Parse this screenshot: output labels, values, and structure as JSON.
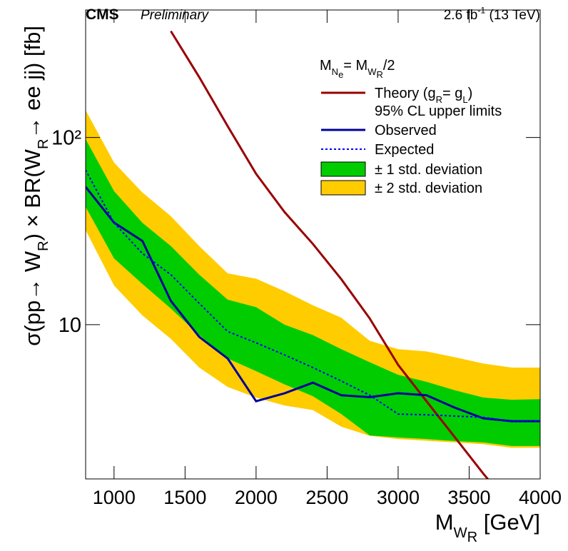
{
  "chart_data": {
    "type": "line",
    "experiment": "CMS",
    "status": "Preliminary",
    "lumi": [
      {
        "text": "2.6 fb"
      },
      {
        "text": "-1",
        "sup": true
      },
      {
        "text": " (13 TeV)"
      }
    ],
    "x_label": [
      {
        "text": "M"
      },
      {
        "text": "W",
        "sub": true
      },
      {
        "text": "R",
        "subsub": true
      },
      {
        "text": " [GeV]"
      }
    ],
    "y_label": [
      {
        "text": "σ(pp→ W"
      },
      {
        "text": "R",
        "sub": true
      },
      {
        "text": ") × BR(W"
      },
      {
        "text": "R",
        "sub": true
      },
      {
        "text": "→ ee jj) [fb]"
      }
    ],
    "legend_title": [
      {
        "text": "M"
      },
      {
        "text": "N",
        "sub": true
      },
      {
        "text": "e",
        "subsub": true
      },
      {
        "text": "= M"
      },
      {
        "text": "W",
        "sub": true
      },
      {
        "text": "R",
        "subsub": true
      },
      {
        "text": "/2"
      }
    ],
    "legend_note": "95% CL upper limits",
    "xlim": [
      800,
      4000
    ],
    "xticks": [
      1000,
      1500,
      2000,
      2500,
      3000,
      3500,
      4000
    ],
    "ylim": [
      1.5,
      480
    ],
    "log_y": true,
    "yticks": [
      10,
      {
        "value": 100,
        "label": "10²"
      }
    ],
    "bands": [
      {
        "name": "± 2 std. deviation",
        "color": "#ffcc00",
        "x": [
          800,
          1000,
          1200,
          1400,
          1600,
          1800,
          2000,
          2200,
          2400,
          2600,
          2800,
          3000,
          3200,
          3400,
          3600,
          3800,
          4000
        ],
        "upper": [
          140,
          73.5,
          50.8,
          38,
          26.3,
          18.8,
          17.6,
          15.1,
          12.7,
          10.9,
          8.2,
          7.4,
          7.2,
          6.7,
          6.2,
          5.9,
          5.9
        ],
        "lower": [
          32,
          16.2,
          11.2,
          8.4,
          5.9,
          4.65,
          4.08,
          3.7,
          3.5,
          2.85,
          2.55,
          2.45,
          2.4,
          2.35,
          2.3,
          2.2,
          2.2
        ]
      },
      {
        "name": "± 1 std. deviation",
        "color": "#00cc00",
        "x": [
          800,
          1000,
          1200,
          1400,
          1600,
          1800,
          2000,
          2200,
          2400,
          2600,
          2800,
          3000,
          3200,
          3400,
          3600,
          3800,
          4000
        ],
        "upper": [
          98,
          51.7,
          35,
          26.3,
          18.5,
          13.6,
          12.4,
          10,
          8.8,
          7.4,
          6.3,
          5.4,
          4.95,
          4.46,
          4.08,
          3.97,
          4.0
        ],
        "lower": [
          42.6,
          22.6,
          16.5,
          12.2,
          8.8,
          6.6,
          5.65,
          4.8,
          4.15,
          3.33,
          2.56,
          2.5,
          2.45,
          2.39,
          2.35,
          2.25,
          2.25
        ]
      }
    ],
    "series": [
      {
        "name": [
          {
            "text": "Theory (g"
          },
          {
            "text": "R",
            "sub": true
          },
          {
            "text": "= g"
          },
          {
            "text": "L",
            "sub": true
          },
          {
            "text": ")"
          }
        ],
        "color": "#990000",
        "dash": false,
        "x": [
          1400,
          1600,
          1800,
          2000,
          2200,
          2400,
          2600,
          2800,
          3000,
          3200,
          3400,
          3600,
          3800
        ],
        "values": [
          370,
          210,
          115,
          64,
          40,
          27,
          17.5,
          10.8,
          6.1,
          3.9,
          2.5,
          1.6,
          1.05
        ]
      },
      {
        "name": "Observed",
        "color": "#000099",
        "dash": false,
        "x": [
          800,
          1000,
          1200,
          1400,
          1600,
          1800,
          2000,
          2200,
          2400,
          2600,
          2800,
          3000,
          3200,
          3400,
          3600,
          3800,
          4000
        ],
        "values": [
          54.5,
          35.1,
          28,
          13.4,
          8.6,
          6.6,
          3.9,
          4.3,
          4.9,
          4.2,
          4.1,
          4.3,
          4.2,
          3.6,
          3.16,
          3.05,
          3.05
        ]
      },
      {
        "name": "Expected",
        "color": "#0000ff",
        "dash": true,
        "x": [
          800,
          1000,
          1200,
          1400,
          1600,
          1800,
          2000,
          2200,
          2400,
          2600,
          2800,
          3000,
          3200,
          3400,
          3600,
          3800,
          4000
        ],
        "values": [
          67,
          35,
          24,
          18.5,
          13,
          9.2,
          8,
          6.9,
          5.9,
          5,
          4.2,
          3.33,
          3.3,
          3.25,
          3.2,
          3.05,
          3.05
        ]
      }
    ]
  }
}
